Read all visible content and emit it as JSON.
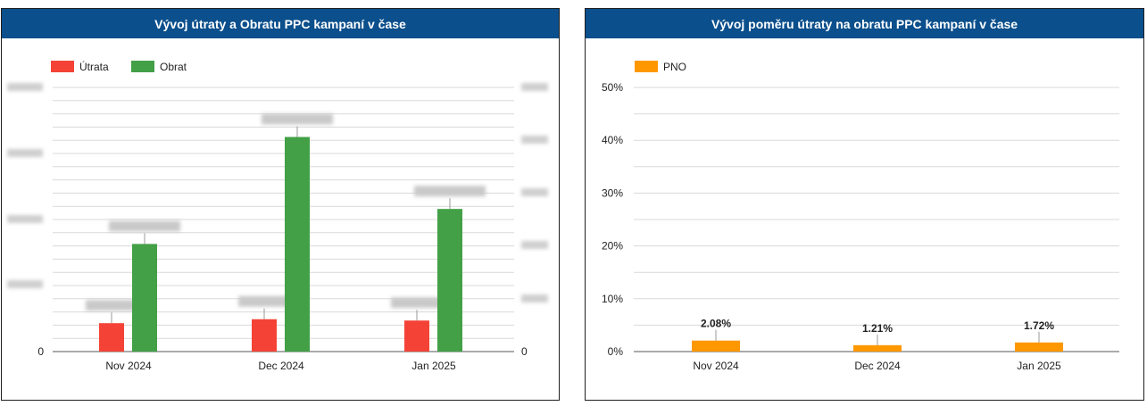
{
  "colors": {
    "header_bg": "#0b4f8c",
    "utrata": "#f44336",
    "obrat": "#43a047",
    "pno": "#ff9800",
    "grid": "#d9d9d9"
  },
  "chart_data": [
    {
      "type": "bar",
      "title": "Vývoj útraty a Obratu PPC kampaní v čase",
      "categories": [
        "Nov 2024",
        "Dec 2024",
        "Jan 2025"
      ],
      "series": [
        {
          "name": "Útrata",
          "axis": "left",
          "values": [
            4300,
            4900,
            4700
          ]
        },
        {
          "name": "Obrat",
          "axis": "left",
          "values": [
            16300,
            32500,
            21600
          ]
        }
      ],
      "ylim": [
        0,
        40000
      ],
      "y_ticks_left": [
        "0"
      ],
      "y_ticks_right": [
        "0"
      ],
      "legend_position": "top-left",
      "grid": true,
      "note": "axis tick labels and data labels are obscured/blurred in the image"
    },
    {
      "type": "bar",
      "title": "Vývoj poměru útraty na obratu PPC kampaní v čase",
      "categories": [
        "Nov 2024",
        "Dec 2024",
        "Jan 2025"
      ],
      "series": [
        {
          "name": "PNO",
          "values": [
            2.08,
            1.21,
            1.72
          ],
          "labels": [
            "2.08%",
            "1.21%",
            "1.72%"
          ]
        }
      ],
      "ylim": [
        0,
        50
      ],
      "y_ticks": [
        "0%",
        "10%",
        "20%",
        "30%",
        "40%",
        "50%"
      ],
      "legend_position": "top-left",
      "grid": true
    }
  ]
}
